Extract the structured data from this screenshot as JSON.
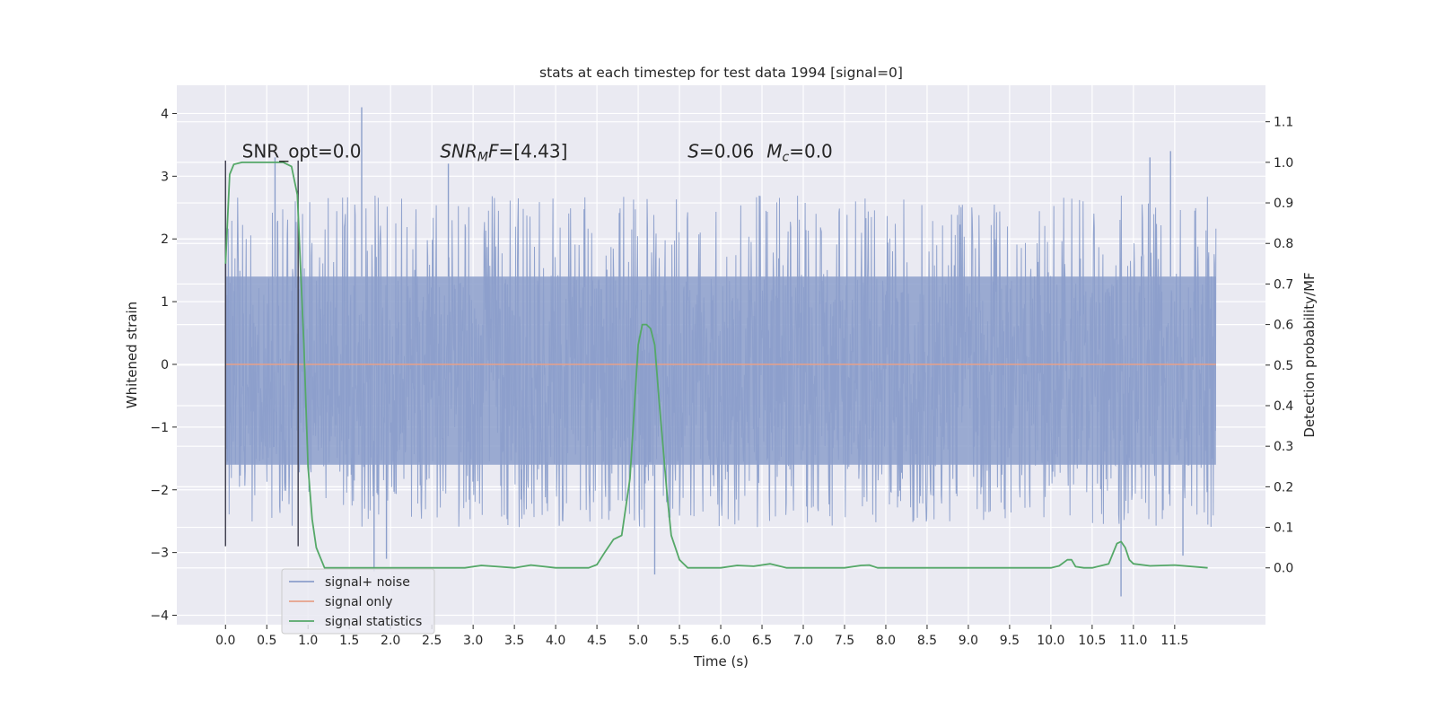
{
  "chart_data": {
    "type": "line",
    "title": "stats at each timestep for test data 1994 [signal=0]",
    "xlabel": "Time (s)",
    "ylabel": "Whitened strain",
    "ylabel_right": "Detection probability/MF",
    "xlim": [
      -0.59,
      12.6
    ],
    "ylim": [
      -4.15,
      4.45
    ],
    "ylim_right": [
      -0.14,
      1.19
    ],
    "x_ticks": [
      0.0,
      0.5,
      1.0,
      1.5,
      2.0,
      2.5,
      3.0,
      3.5,
      4.0,
      4.5,
      5.0,
      5.5,
      6.0,
      6.5,
      7.0,
      7.5,
      8.0,
      8.5,
      9.0,
      9.5,
      10.0,
      10.5,
      11.0,
      11.5
    ],
    "x_tick_labels": [
      "0.0",
      "0.5",
      "1.0",
      "1.5",
      "2.0",
      "2.5",
      "3.0",
      "3.5",
      "4.0",
      "4.5",
      "5.0",
      "5.5",
      "6.0",
      "6.5",
      "7.0",
      "7.5",
      "8.0",
      "8.5",
      "9.0",
      "9.5",
      "10.0",
      "10.5",
      "11.0",
      "11.5"
    ],
    "y_ticks": [
      -4,
      -3,
      -2,
      -1,
      0,
      1,
      2,
      3,
      4
    ],
    "y_tick_labels": [
      "−4",
      "−3",
      "−2",
      "−1",
      "0",
      "1",
      "2",
      "3",
      "4"
    ],
    "y_ticks_right": [
      0.0,
      0.1,
      0.2,
      0.3,
      0.4,
      0.5,
      0.6,
      0.7,
      0.8,
      0.9,
      1.0,
      1.1
    ],
    "y_tick_labels_right": [
      "0.0",
      "0.1",
      "0.2",
      "0.3",
      "0.4",
      "0.5",
      "0.6",
      "0.7",
      "0.8",
      "0.9",
      "1.0",
      "1.1"
    ],
    "grid": true,
    "legend_position": "lower-left",
    "noise_band": {
      "x_start": 0.0,
      "x_end": 12.0,
      "dense_range": [
        -1.6,
        1.4
      ],
      "typical_max": 2.7,
      "typical_min": -2.6,
      "max_peaks": [
        {
          "x": 1.65,
          "y": 4.1
        },
        {
          "x": 0.6,
          "y": 3.3
        },
        {
          "x": 11.45,
          "y": 3.4
        },
        {
          "x": 11.2,
          "y": 3.3
        },
        {
          "x": 2.7,
          "y": 3.2
        }
      ],
      "min_peaks": [
        {
          "x": 10.85,
          "y": -3.7
        },
        {
          "x": 5.2,
          "y": -3.35
        },
        {
          "x": 1.8,
          "y": -3.3
        },
        {
          "x": 1.95,
          "y": -3.1
        },
        {
          "x": 11.6,
          "y": -3.05
        }
      ]
    },
    "vlines": [
      {
        "x": 0.0,
        "y_min": -2.9,
        "y_max": 3.25
      },
      {
        "x": 0.88,
        "y_min": -2.9,
        "y_max": 3.25
      }
    ],
    "series": [
      {
        "name": "signal+ noise",
        "color": "#8c9fcb",
        "axis": "left",
        "style": "noise"
      },
      {
        "name": "signal only",
        "color": "#e6a08a",
        "axis": "left",
        "x": [
          0.0,
          12.0
        ],
        "y": [
          0.0,
          0.0
        ]
      },
      {
        "name": "signal statistics",
        "color": "#55a868",
        "axis": "right",
        "x": [
          0.0,
          0.05,
          0.1,
          0.2,
          0.3,
          0.5,
          0.6,
          0.7,
          0.8,
          0.87,
          0.95,
          1.0,
          1.05,
          1.1,
          1.2,
          1.5,
          2.0,
          2.5,
          2.9,
          3.1,
          3.5,
          3.7,
          4.0,
          4.4,
          4.5,
          4.6,
          4.7,
          4.8,
          4.9,
          5.0,
          5.05,
          5.1,
          5.15,
          5.2,
          5.25,
          5.3,
          5.35,
          5.4,
          5.5,
          5.6,
          5.7,
          5.8,
          6.0,
          6.2,
          6.4,
          6.6,
          6.8,
          7.0,
          7.5,
          7.7,
          7.8,
          7.9,
          8.1,
          8.5,
          9.0,
          9.5,
          10.0,
          10.1,
          10.2,
          10.25,
          10.3,
          10.4,
          10.5,
          10.7,
          10.8,
          10.85,
          10.9,
          10.95,
          11.0,
          11.2,
          11.5,
          11.9
        ],
        "y": [
          0.75,
          0.97,
          0.995,
          1.0,
          1.0,
          1.0,
          1.0,
          1.0,
          0.99,
          0.92,
          0.55,
          0.25,
          0.12,
          0.05,
          0.0,
          0.0,
          0.0,
          0.0,
          0.0,
          0.006,
          0.0,
          0.007,
          0.0,
          0.0,
          0.008,
          0.04,
          0.07,
          0.08,
          0.22,
          0.55,
          0.6,
          0.6,
          0.59,
          0.55,
          0.42,
          0.3,
          0.18,
          0.08,
          0.02,
          0.0,
          0.0,
          0.0,
          0.0,
          0.006,
          0.004,
          0.01,
          0.0,
          0.0,
          0.0,
          0.006,
          0.007,
          0.0,
          0.0,
          0.0,
          0.0,
          0.0,
          0.0,
          0.005,
          0.02,
          0.02,
          0.003,
          0.0,
          0.0,
          0.01,
          0.06,
          0.065,
          0.05,
          0.02,
          0.01,
          0.005,
          0.007,
          0.0
        ]
      }
    ],
    "annotations": [
      {
        "x": 0.2,
        "y": 3.3,
        "text": "SNR_opt=0.0",
        "style": "normal"
      },
      {
        "x": 2.6,
        "y": 3.3,
        "text": "SNR_MF=[4.43]",
        "style": "snrmf"
      },
      {
        "x": 5.6,
        "y": 3.3,
        "text": "S=0.06   M_c=0.0",
        "style": "smc"
      }
    ]
  }
}
